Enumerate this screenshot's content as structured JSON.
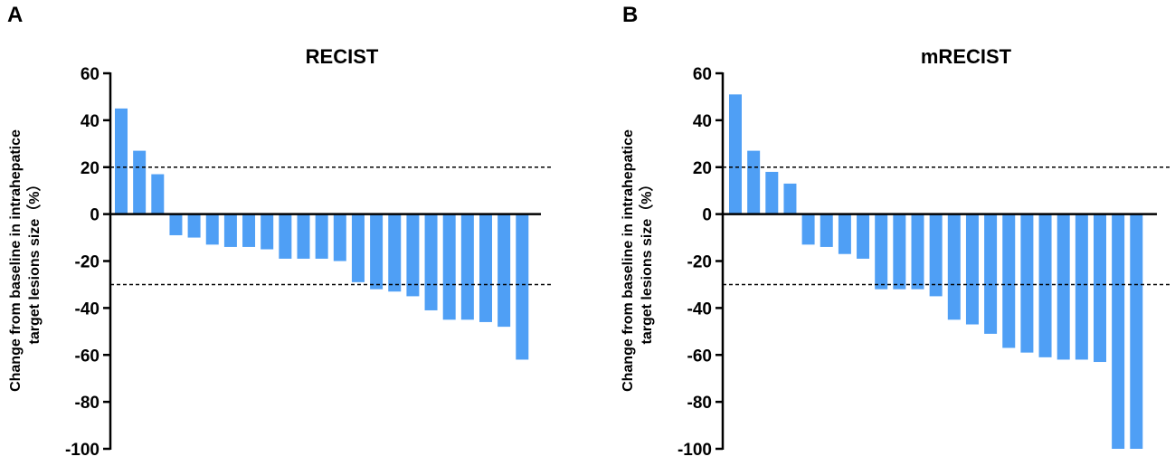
{
  "colors": {
    "bar": "#4f9ff5",
    "axis": "#000000"
  },
  "chart_data": [
    {
      "panel_label": "A",
      "type": "bar",
      "title": "RECIST",
      "ylabel": "Change from baseline in intrahepatice",
      "ylabel2": "target lesions size（%）",
      "xlabel": "",
      "ylim": [
        -100,
        60
      ],
      "yticks": [
        60,
        40,
        20,
        0,
        -20,
        -40,
        -60,
        -80,
        -100
      ],
      "ytick_labels": [
        "60",
        "40",
        "20",
        "0",
        "-20",
        "-40",
        "-60",
        "-80",
        "-100"
      ],
      "reference_lines": [
        20,
        -30
      ],
      "values": [
        45,
        27,
        17,
        -9,
        -10,
        -13,
        -14,
        -14,
        -15,
        -19,
        -19,
        -19,
        -20,
        -29,
        -32,
        -33,
        -35,
        -41,
        -45,
        -45,
        -46,
        -48,
        -62
      ]
    },
    {
      "panel_label": "B",
      "type": "bar",
      "title": "mRECIST",
      "ylabel": "Change from baseline in intrahepatice",
      "ylabel2": "target lesions size（%）",
      "xlabel": "",
      "ylim": [
        -100,
        60
      ],
      "yticks": [
        60,
        40,
        20,
        0,
        -20,
        -40,
        -60,
        -80,
        -100
      ],
      "ytick_labels": [
        "60",
        "40",
        "20",
        "0",
        "-20",
        "-40",
        "-60",
        "-80",
        "-100"
      ],
      "reference_lines": [
        20,
        -30
      ],
      "values": [
        51,
        27,
        18,
        13,
        -13,
        -14,
        -17,
        -19,
        -32,
        -32,
        -32,
        -35,
        -45,
        -47,
        -51,
        -57,
        -59,
        -61,
        -62,
        -62,
        -63,
        -100,
        -100
      ]
    }
  ]
}
